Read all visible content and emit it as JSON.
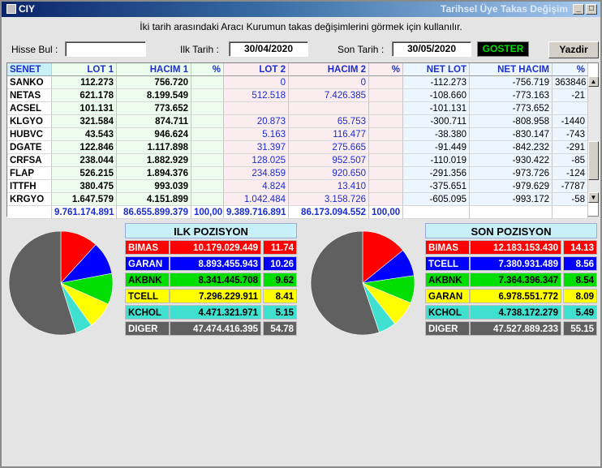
{
  "window": {
    "title_left": "CIY",
    "title_right": "Tarihsel Üye Takas Değişim",
    "min_label": "_",
    "max_label": "□",
    "close_label": "✕"
  },
  "hint": "İki tarih arasındaki  Aracı Kurumun takas değişimlerini görmek için kullanılır.",
  "toolbar": {
    "search_label": "Hisse Bul :",
    "search_value": "",
    "start_label": "Ilk Tarih :",
    "start_value": "30/04/2020",
    "end_label": "Son Tarih :",
    "end_value": "30/05/2020",
    "go_label": "GOSTER",
    "print_label": "Yazdir"
  },
  "table": {
    "headers": [
      "SENET",
      "LOT 1",
      "HACIM 1",
      "%",
      "LOT 2",
      "HACIM 2",
      "%",
      "NET LOT",
      "NET HACIM",
      "%"
    ],
    "rows": [
      [
        "SANKO",
        "112.273",
        "756.720",
        "",
        "0",
        "0",
        "",
        "-112.273",
        "-756.719",
        "363846"
      ],
      [
        "NETAS",
        "621.178",
        "8.199.549",
        "",
        "512.518",
        "7.426.385",
        "",
        "-108.660",
        "-773.163",
        "-21"
      ],
      [
        "ACSEL",
        "101.131",
        "773.652",
        "",
        "",
        "",
        "",
        "-101.131",
        "-773.652",
        ""
      ],
      [
        "KLGYO",
        "321.584",
        "874.711",
        "",
        "20.873",
        "65.753",
        "",
        "-300.711",
        "-808.958",
        "-1440"
      ],
      [
        "HUBVC",
        "43.543",
        "946.624",
        "",
        "5.163",
        "116.477",
        "",
        "-38.380",
        "-830.147",
        "-743"
      ],
      [
        "DGATE",
        "122.846",
        "1.117.898",
        "",
        "31.397",
        "275.665",
        "",
        "-91.449",
        "-842.232",
        "-291"
      ],
      [
        "CRFSA",
        "238.044",
        "1.882.929",
        "",
        "128.025",
        "952.507",
        "",
        "-110.019",
        "-930.422",
        "-85"
      ],
      [
        "FLAP",
        "526.215",
        "1.894.376",
        "",
        "234.859",
        "920.650",
        "",
        "-291.356",
        "-973.726",
        "-124"
      ],
      [
        "ITTFH",
        "380.475",
        "993.039",
        "",
        "4.824",
        "13.410",
        "",
        "-375.651",
        "-979.629",
        "-7787"
      ],
      [
        "KRGYO",
        "1.647.579",
        "4.151.899",
        "",
        "1.042.484",
        "3.158.726",
        "",
        "-605.095",
        "-993.172",
        "-58"
      ]
    ],
    "totals": [
      "",
      "9.761.174.891",
      "86.655.899.379",
      "100,00",
      "9.389.716.891",
      "86.173.094.552",
      "100,00",
      "",
      "",
      ""
    ]
  },
  "first_position": {
    "title": "ILK POZISYON",
    "rows": [
      {
        "name": "BIMAS",
        "value": "10.179.029.449",
        "pct": "11.74",
        "pct_num": 11.74,
        "color": "#ff0000",
        "text": "#ffffff"
      },
      {
        "name": "GARAN",
        "value": "8.893.455.943",
        "pct": "10.26",
        "pct_num": 10.26,
        "color": "#0000ff",
        "text": "#ffffff"
      },
      {
        "name": "AKBNK",
        "value": "8.341.445.708",
        "pct": "9.62",
        "pct_num": 9.62,
        "color": "#00dd00",
        "text": "#000000"
      },
      {
        "name": "TCELL",
        "value": "7.296.229.911",
        "pct": "8.41",
        "pct_num": 8.41,
        "color": "#ffff00",
        "text": "#000000"
      },
      {
        "name": "KCHOL",
        "value": "4.471.321.971",
        "pct": "5.15",
        "pct_num": 5.15,
        "color": "#40e0d0",
        "text": "#000000"
      },
      {
        "name": "DIGER",
        "value": "47.474.416.395",
        "pct": "54.78",
        "pct_num": 54.78,
        "color": "#606060",
        "text": "#ffffff"
      }
    ]
  },
  "last_position": {
    "title": "SON POZISYON",
    "rows": [
      {
        "name": "BIMAS",
        "value": "12.183.153.430",
        "pct": "14.13",
        "pct_num": 14.13,
        "color": "#ff0000",
        "text": "#ffffff"
      },
      {
        "name": "TCELL",
        "value": "7.380.931.489",
        "pct": "8.56",
        "pct_num": 8.56,
        "color": "#0000ff",
        "text": "#ffffff"
      },
      {
        "name": "AKBNK",
        "value": "7.364.396.347",
        "pct": "8.54",
        "pct_num": 8.54,
        "color": "#00dd00",
        "text": "#000000"
      },
      {
        "name": "GARAN",
        "value": "6.978.551.772",
        "pct": "8.09",
        "pct_num": 8.09,
        "color": "#ffff00",
        "text": "#000000"
      },
      {
        "name": "KCHOL",
        "value": "4.738.172.279",
        "pct": "5.49",
        "pct_num": 5.49,
        "color": "#40e0d0",
        "text": "#000000"
      },
      {
        "name": "DIGER",
        "value": "47.527.889.233",
        "pct": "55.15",
        "pct_num": 55.15,
        "color": "#606060",
        "text": "#ffffff"
      }
    ]
  }
}
